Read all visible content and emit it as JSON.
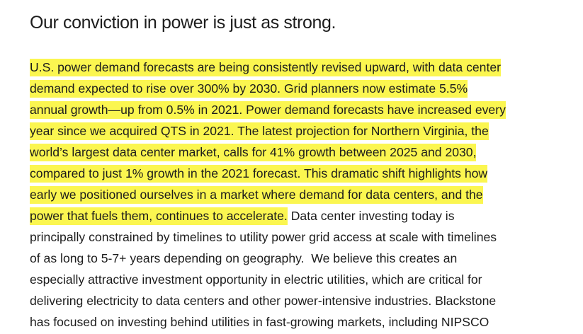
{
  "heading": "Our conviction in power is just as strong.",
  "colors": {
    "text": "#1c1c1c",
    "highlight": "#fbf650",
    "background": "#ffffff"
  },
  "paragraph": {
    "lines": [
      {
        "highlighted": "U.S. power demand forecasts are being consistently revised upward, with data center",
        "plain": ""
      },
      {
        "highlighted": "demand expected to rise over 300% by 2030. Grid planners now estimate 5.5%",
        "plain": ""
      },
      {
        "highlighted": "annual growth—up from 0.5% in 2021. Power demand forecasts have increased every",
        "plain": ""
      },
      {
        "highlighted": "year since we acquired QTS in 2021. The latest projection for Northern Virginia, the",
        "plain": ""
      },
      {
        "highlighted": "world’s largest data center market, calls for 41% growth between 2025 and 2030,",
        "plain": ""
      },
      {
        "highlighted": "compared to just 1% growth in the 2021 forecast. This dramatic shift highlights how",
        "plain": ""
      },
      {
        "highlighted": "early we positioned ourselves in a market where demand for data centers, and the",
        "plain": ""
      },
      {
        "highlighted": "power that fuels them, continues to accelerate.",
        "plain": " Data center investing today is"
      },
      {
        "highlighted": "",
        "plain": "principally constrained by timelines to utility power grid access at scale with timelines"
      },
      {
        "highlighted": "",
        "plain": "of as long to 5-7+ years depending on geography.  We believe this creates an"
      },
      {
        "highlighted": "",
        "plain": "especially attractive investment opportunity in electric utilities, which are critical for"
      },
      {
        "highlighted": "",
        "plain": "delivering electricity to data centers and other power-intensive industries. Blackstone"
      },
      {
        "highlighted": "",
        "plain": "has focused on investing behind utilities in fast-growing markets, including NIPSCO"
      }
    ]
  }
}
